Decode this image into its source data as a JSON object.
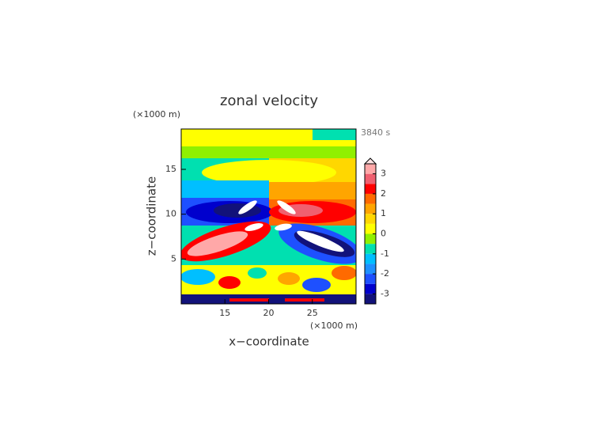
{
  "chart_data": {
    "type": "contour",
    "title": "zonal velocity",
    "xlabel": "x−coordinate",
    "ylabel": "z−coordinate",
    "x_unit_label": "(×1000 m)",
    "y_unit_label": "(×1000 m)",
    "time_label": "3840 s",
    "xlim": [
      10,
      30
    ],
    "xticks": [
      15,
      20,
      25
    ],
    "ylim": [
      0,
      19.5
    ],
    "yticks": [
      5,
      10,
      15
    ],
    "colorbar": {
      "levels": [
        -3.5,
        -3,
        -2.5,
        -2,
        -1.5,
        -1,
        -0.5,
        0,
        0.5,
        1,
        1.5,
        2,
        2.5,
        3,
        3.5
      ],
      "colors": [
        "#12127a",
        "#0000cd",
        "#1e50ff",
        "#1e90ff",
        "#00bfff",
        "#00e0b0",
        "#90f000",
        "#ffff00",
        "#ffd700",
        "#ffa500",
        "#ff6a00",
        "#ff0000",
        "#f06070",
        "#ffa8a8"
      ],
      "extend_color": "#ffe4e4",
      "ticks": [
        -3,
        -2,
        -1,
        0,
        1,
        2,
        3
      ]
    }
  }
}
